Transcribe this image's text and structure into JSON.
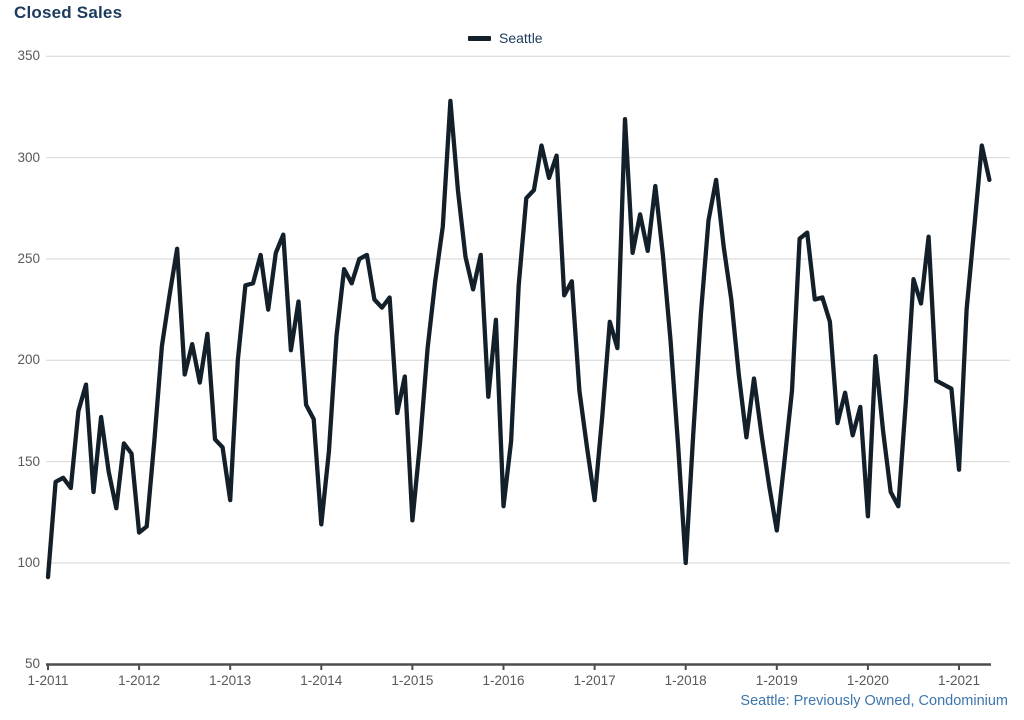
{
  "title": "Closed Sales",
  "legend": {
    "label": "Seattle"
  },
  "footer": "Seattle: Previously Owned, Condominium",
  "colors": {
    "title_text": "#1c3a5c",
    "line": "#131f29",
    "gridline": "#d6d6d6",
    "axis_line": "#4d4d4d",
    "axis_label": "#595959",
    "footer_text": "#3d76ad"
  },
  "chart_data": {
    "type": "line",
    "title": "Closed Sales",
    "xlabel": "",
    "ylabel": "",
    "ylim": [
      50,
      350
    ],
    "y_ticks": [
      350,
      300,
      250,
      200,
      150,
      100,
      50
    ],
    "x_tick_labels": [
      "1-2011",
      "1-2012",
      "1-2013",
      "1-2014",
      "1-2015",
      "1-2016",
      "1-2017",
      "1-2018",
      "1-2019",
      "1-2020",
      "1-2021"
    ],
    "x_ticks_every_months": 12,
    "x_start": "2011-01",
    "x_end": "2021-05",
    "grid": "horizontal",
    "legend_position": "top-center",
    "series": [
      {
        "name": "Seattle",
        "color": "#131f29",
        "values": [
          93,
          140,
          142,
          137,
          175,
          188,
          135,
          172,
          145,
          127,
          159,
          154,
          115,
          118,
          160,
          207,
          232,
          255,
          193,
          208,
          189,
          213,
          161,
          157,
          131,
          200,
          237,
          238,
          252,
          225,
          253,
          262,
          205,
          229,
          178,
          171,
          119,
          155,
          212,
          245,
          238,
          250,
          252,
          230,
          226,
          231,
          174,
          192,
          121,
          159,
          206,
          239,
          266,
          328,
          284,
          251,
          235,
          252,
          182,
          220,
          128,
          160,
          237,
          280,
          284,
          306,
          290,
          301,
          232,
          239,
          185,
          157,
          131,
          172,
          219,
          206,
          319,
          253,
          272,
          254,
          286,
          252,
          210,
          158,
          100,
          164,
          223,
          269,
          289,
          256,
          230,
          193,
          162,
          191,
          163,
          138,
          116,
          150,
          185,
          260,
          263,
          230,
          231,
          219,
          169,
          184,
          163,
          177,
          123,
          202,
          165,
          135,
          128,
          180,
          240,
          228,
          261,
          190,
          188,
          186,
          146,
          225,
          265,
          306,
          289
        ]
      }
    ]
  }
}
